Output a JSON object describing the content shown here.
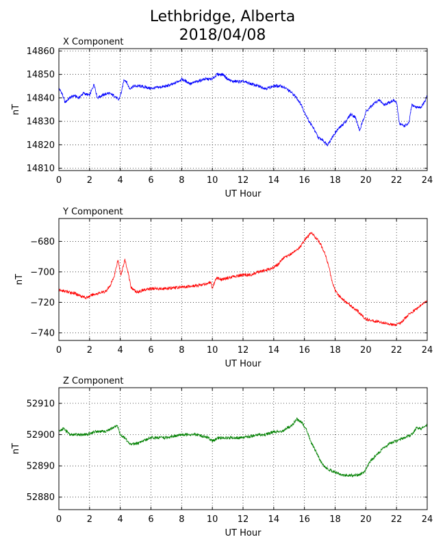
{
  "title": [
    "Lethbridge, Alberta",
    "2018/04/08"
  ],
  "chart_data": [
    {
      "type": "line",
      "panel_title": "X Component",
      "xlabel": "UT Hour",
      "ylabel": "nT",
      "xlim": [
        0,
        24
      ],
      "ylim": [
        14809,
        14861
      ],
      "xticks": [
        0,
        2,
        4,
        6,
        8,
        10,
        12,
        14,
        16,
        18,
        20,
        22,
        24
      ],
      "yticks": [
        14810,
        14820,
        14830,
        14840,
        14850,
        14860
      ],
      "grid": true,
      "color": "#0000ff",
      "series": [
        {
          "x": [
            0,
            0.2,
            0.4,
            0.7,
            1.0,
            1.3,
            1.6,
            2.0,
            2.3,
            2.5,
            2.8,
            3.2,
            3.6,
            3.9,
            4.1,
            4.25,
            4.4,
            4.6,
            4.9,
            5.3,
            6.0,
            7.0,
            7.5,
            8.0,
            8.6,
            9.0,
            9.5,
            10.0,
            10.3,
            10.7,
            11.0,
            11.3,
            12.0,
            13.0,
            13.5,
            14.0,
            14.5,
            14.8,
            15.2,
            15.5,
            15.8,
            16.0,
            16.3,
            16.6,
            16.9,
            17.2,
            17.5,
            17.8,
            18.1,
            18.4,
            18.7,
            19.0,
            19.3,
            19.6,
            19.8,
            20.0,
            20.3,
            20.6,
            20.9,
            21.2,
            21.5,
            21.8,
            22.0,
            22.2,
            22.5,
            22.8,
            23.0,
            23.3,
            23.6,
            23.9,
            24.0
          ],
          "y": [
            14844,
            14842,
            14838,
            14840,
            14841,
            14840,
            14842,
            14841,
            14846,
            14840,
            14841,
            14842,
            14841,
            14839,
            14843,
            14848,
            14847,
            14844,
            14845,
            14845,
            14844,
            14845,
            14846,
            14848,
            14846,
            14847,
            14848,
            14848,
            14850,
            14850,
            14848,
            14847,
            14847,
            14845,
            14844,
            14845,
            14845,
            14844,
            14842,
            14840,
            14837,
            14834,
            14830,
            14827,
            14823,
            14822,
            14820,
            14823,
            14826,
            14828,
            14830,
            14833,
            14832,
            14826,
            14830,
            14834,
            14836,
            14838,
            14839,
            14837,
            14838,
            14839,
            14838,
            14829,
            14828,
            14829,
            14837,
            14836,
            14836,
            14839,
            14841
          ]
        }
      ]
    },
    {
      "type": "line",
      "panel_title": "Y Component",
      "xlabel": "UT Hour",
      "ylabel": "nT",
      "xlim": [
        0,
        24
      ],
      "ylim": [
        -745,
        -665
      ],
      "xticks": [
        0,
        2,
        4,
        6,
        8,
        10,
        12,
        14,
        16,
        18,
        20,
        22,
        24
      ],
      "yticks": [
        -740,
        -720,
        -700,
        -680
      ],
      "grid": true,
      "color": "#ff0000",
      "series": [
        {
          "x": [
            0,
            0.5,
            1.0,
            1.5,
            1.8,
            2.2,
            2.6,
            3.0,
            3.3,
            3.6,
            3.85,
            4.05,
            4.3,
            4.5,
            4.7,
            5.0,
            5.2,
            5.5,
            6.0,
            7.0,
            8.0,
            9.0,
            9.5,
            9.9,
            10.0,
            10.1,
            10.3,
            10.6,
            11.0,
            12.0,
            12.5,
            13.0,
            13.5,
            14.0,
            14.3,
            14.6,
            15.0,
            15.3,
            15.6,
            15.9,
            16.1,
            16.3,
            16.45,
            16.6,
            16.8,
            17.0,
            17.3,
            17.6,
            17.8,
            18.0,
            18.3,
            18.6,
            19.0,
            19.5,
            20.0,
            20.5,
            21.0,
            21.5,
            21.9,
            22.2,
            22.5,
            22.8,
            23.2,
            23.6,
            24.0
          ],
          "y": [
            -712,
            -713,
            -714,
            -716,
            -717,
            -715,
            -714,
            -713,
            -710,
            -703,
            -692,
            -702,
            -692,
            -700,
            -710,
            -713,
            -713,
            -712,
            -711,
            -711,
            -710,
            -709,
            -708,
            -707,
            -712,
            -708,
            -704,
            -705,
            -704,
            -702,
            -702,
            -700,
            -699,
            -697,
            -695,
            -691,
            -689,
            -687,
            -685,
            -681,
            -678,
            -676,
            -674,
            -676,
            -678,
            -681,
            -687,
            -697,
            -706,
            -712,
            -716,
            -719,
            -722,
            -726,
            -731,
            -732,
            -733,
            -734,
            -735,
            -734,
            -731,
            -728,
            -725,
            -722,
            -719
          ]
        }
      ]
    },
    {
      "type": "line",
      "panel_title": "Z Component",
      "xlabel": "UT Hour",
      "ylabel": "nT",
      "xlim": [
        0,
        24
      ],
      "ylim": [
        52876,
        52915
      ],
      "xticks": [
        0,
        2,
        4,
        6,
        8,
        10,
        12,
        14,
        16,
        18,
        20,
        22,
        24
      ],
      "yticks": [
        52880,
        52890,
        52900,
        52910
      ],
      "grid": true,
      "color": "#008000",
      "series": [
        {
          "x": [
            0,
            0.3,
            0.7,
            1.2,
            1.8,
            2.4,
            3.0,
            3.5,
            3.8,
            4.0,
            4.3,
            4.6,
            5.0,
            5.5,
            6.0,
            7.0,
            8.0,
            9.0,
            9.7,
            10.0,
            10.4,
            11.0,
            12.0,
            13.0,
            13.5,
            14.0,
            14.5,
            14.8,
            15.2,
            15.5,
            15.8,
            16.1,
            16.4,
            16.8,
            17.1,
            17.5,
            18.0,
            18.5,
            19.0,
            19.5,
            19.9,
            20.2,
            20.6,
            21.0,
            21.5,
            22.0,
            22.5,
            23.0,
            23.3,
            23.6,
            24.0
          ],
          "y": [
            52901,
            52902,
            52900,
            52900,
            52900,
            52901,
            52901,
            52902,
            52903,
            52900,
            52899,
            52897,
            52897,
            52898,
            52899,
            52899,
            52900,
            52900,
            52899,
            52898,
            52899,
            52899,
            52899,
            52900,
            52900,
            52901,
            52901,
            52902,
            52903,
            52905,
            52904,
            52902,
            52898,
            52894,
            52891,
            52889,
            52888,
            52887,
            52887,
            52887,
            52888,
            52891,
            52893,
            52895,
            52897,
            52898,
            52899,
            52900,
            52902,
            52902,
            52903
          ]
        }
      ]
    }
  ]
}
